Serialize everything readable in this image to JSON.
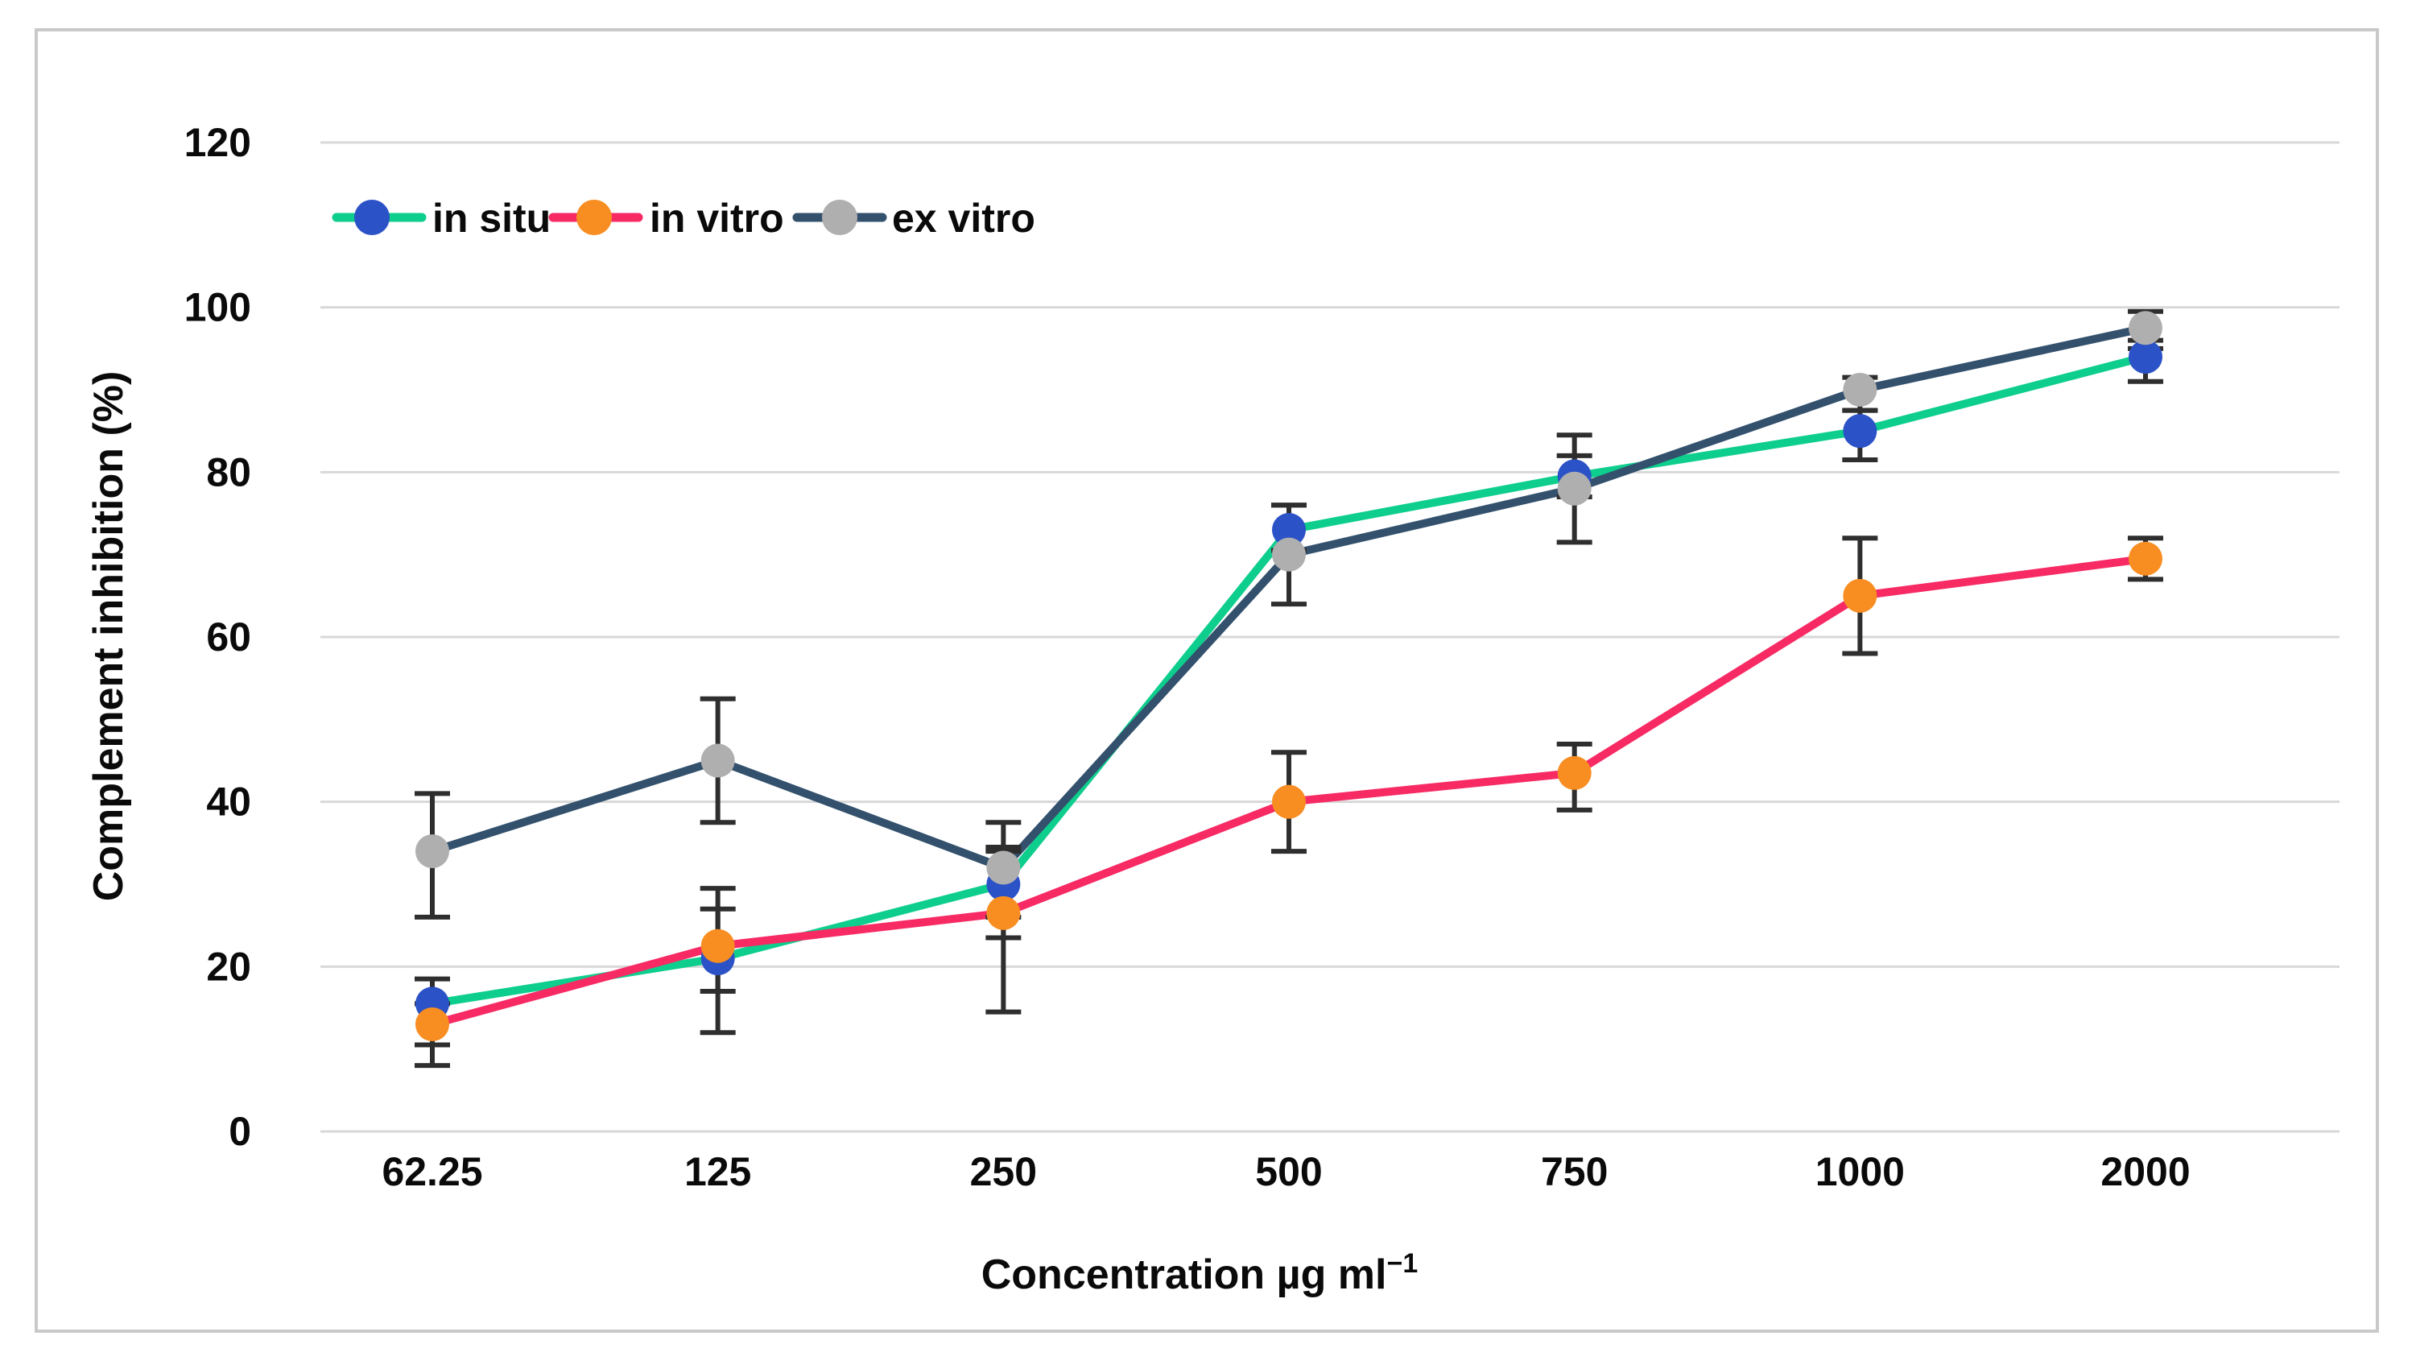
{
  "figure": {
    "background": "#ffffff",
    "frame_border_color": "#c9c9c9"
  },
  "chart_data": {
    "type": "line",
    "title": "",
    "xlabel": "Concentration µg ml⁻¹",
    "xlabel_base": "Concentration µg ml",
    "xlabel_superscript": "−1",
    "ylabel": "Complement inhibition (%)",
    "categories": [
      "62.25",
      "125",
      "250",
      "500",
      "750",
      "1000",
      "2000"
    ],
    "ylim": [
      0,
      120
    ],
    "yticks": [
      0,
      20,
      40,
      60,
      80,
      100,
      120
    ],
    "grid": true,
    "gridline_color": "#d8d8d8",
    "error_bar_color": "#2e2e2e",
    "legend_position": "top-left-inside",
    "series": [
      {
        "name": "in situ",
        "line_color": "#0ece8d",
        "marker_color": "#2b52c6",
        "values": [
          15.5,
          21,
          30,
          73,
          79.5,
          85,
          94
        ],
        "err_up": [
          3,
          8.5,
          4,
          3,
          2.5,
          2.5,
          1
        ],
        "err_down": [
          5,
          9,
          4,
          2.5,
          2.5,
          3.5,
          3
        ]
      },
      {
        "name": "in vitro",
        "line_color": "#f72a64",
        "marker_color": "#f88d21",
        "values": [
          13,
          22.5,
          26.5,
          40,
          43.5,
          65,
          69.5
        ],
        "err_up": [
          2.5,
          4.5,
          8,
          6,
          3.5,
          7,
          2.5
        ],
        "err_down": [
          5,
          5.5,
          12,
          6,
          4.5,
          7,
          2.5
        ]
      },
      {
        "name": "ex vitro",
        "line_color": "#33516d",
        "marker_color": "#afafaf",
        "values": [
          34,
          45,
          32,
          70,
          78,
          90,
          97.5
        ],
        "err_up": [
          7,
          7.5,
          5.5,
          6,
          6.5,
          1.5,
          2
        ],
        "err_down": [
          8,
          7.5,
          8.5,
          6,
          6.5,
          2.5,
          1.5
        ]
      }
    ]
  }
}
